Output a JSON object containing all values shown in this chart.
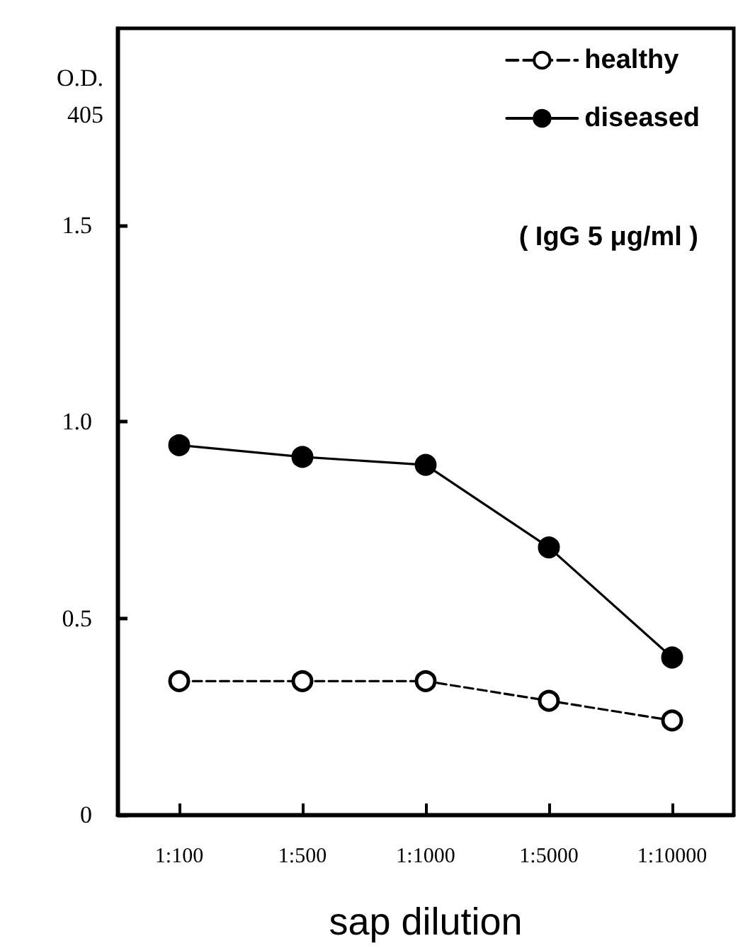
{
  "chart_data": {
    "type": "line",
    "xlabel": "sap dilution",
    "ylabel": "O.D.\n405",
    "categories": [
      "1:100",
      "1:500",
      "1:1000",
      "1:5000",
      "1:10000"
    ],
    "series": [
      {
        "name": "healthy",
        "color": "#000000",
        "line_style": "dashed",
        "values": [
          0.34,
          0.34,
          0.34,
          0.29,
          0.24
        ]
      },
      {
        "name": "diseased",
        "color": "#000000",
        "line_style": "solid",
        "values": [
          0.94,
          0.91,
          0.89,
          0.68,
          0.4
        ]
      }
    ],
    "ylim": [
      0,
      2
    ],
    "yticks": [
      0,
      0.5,
      {
        "value": 1,
        "label": "1.0"
      },
      1.5
    ],
    "marker": "circle",
    "legend": "top right",
    "grid": false,
    "annotations": [
      "( IgG 5 μg/ml )"
    ]
  }
}
